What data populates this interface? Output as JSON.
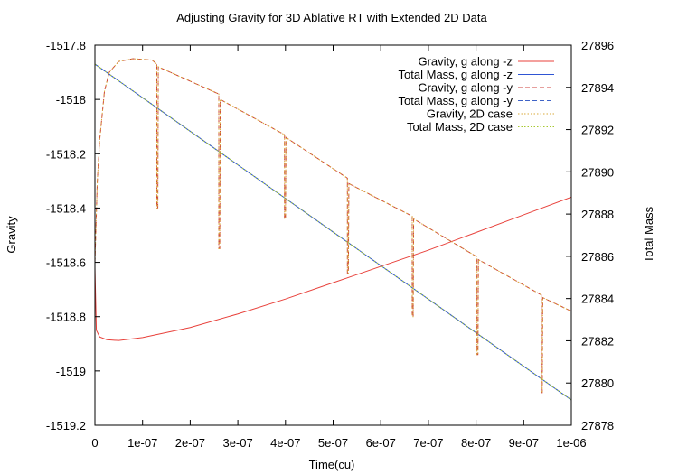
{
  "chart_data": {
    "type": "line",
    "title": "Adjusting Gravity for 3D Ablative RT with Extended 2D Data",
    "xlabel": "Time(cu)",
    "ylabel": "Gravity",
    "y2label": "Total Mass",
    "xlim": [
      0,
      1e-06
    ],
    "ylim": [
      -1519.2,
      -1517.8
    ],
    "y2lim": [
      27878,
      27896
    ],
    "x_ticks": [
      0,
      1e-07,
      2e-07,
      3e-07,
      4e-07,
      5e-07,
      6e-07,
      7e-07,
      8e-07,
      9e-07,
      1e-06
    ],
    "x_tick_labels": [
      "0",
      "1e-07",
      "2e-07",
      "3e-07",
      "4e-07",
      "5e-07",
      "6e-07",
      "7e-07",
      "8e-07",
      "9e-07",
      "1e-06"
    ],
    "y_ticks": [
      -1517.8,
      -1518,
      -1518.2,
      -1518.4,
      -1518.6,
      -1518.8,
      -1519,
      -1519.2
    ],
    "y_tick_labels": [
      "-1517.8",
      "-1518",
      "-1518.2",
      "-1518.4",
      "-1518.6",
      "-1518.8",
      "-1519",
      "-1519.2"
    ],
    "y2_ticks": [
      27896,
      27894,
      27892,
      27890,
      27888,
      27886,
      27884,
      27882,
      27880,
      27878
    ],
    "y2_tick_labels": [
      "27896",
      "27894",
      "27892",
      "27890",
      "27888",
      "27886",
      "27884",
      "27882",
      "27880",
      "27878"
    ],
    "legend_position": "top-right",
    "grid": false,
    "series": [
      {
        "name": "Gravity, g along -z",
        "axis": "left",
        "color": "#e8413b",
        "dash": "solid",
        "x": [
          0,
          3e-09,
          1e-08,
          2.5e-08,
          5e-08,
          1e-07,
          2e-07,
          3e-07,
          4e-07,
          5e-07,
          6e-07,
          7e-07,
          8e-07,
          9e-07,
          1e-06
        ],
        "y": [
          -1518.62,
          -1518.85,
          -1518.875,
          -1518.885,
          -1518.888,
          -1518.877,
          -1518.84,
          -1518.79,
          -1518.735,
          -1518.675,
          -1518.615,
          -1518.555,
          -1518.49,
          -1518.425,
          -1518.36
        ]
      },
      {
        "name": "Total Mass, g along -z",
        "axis": "right",
        "color": "#2f55d4",
        "dash": "solid",
        "x": [
          0,
          1e-06
        ],
        "y": [
          27895.1,
          27879.2
        ]
      },
      {
        "name": "Gravity, g along -y",
        "axis": "left",
        "color": "#cc3f3b",
        "dash": "dashed",
        "x": [
          0,
          5e-09,
          1e-08,
          2e-08,
          3e-08,
          5e-08,
          8e-08,
          1.2e-07,
          1.3e-07,
          1.3e-07,
          1.32e-07,
          1.33e-07,
          2.6e-07,
          2.6e-07,
          2.62e-07,
          2.63e-07,
          3.98e-07,
          3.98e-07,
          4e-07,
          4.01e-07,
          5.3e-07,
          5.3e-07,
          5.32e-07,
          5.33e-07,
          6.66e-07,
          6.66e-07,
          6.68e-07,
          6.69e-07,
          8.02e-07,
          8.02e-07,
          8.04e-07,
          8.05e-07,
          9.37e-07,
          9.37e-07,
          9.39e-07,
          9.4e-07,
          1e-06
        ],
        "y": [
          -1518.6,
          -1518.3,
          -1518.15,
          -1517.97,
          -1517.9,
          -1517.86,
          -1517.85,
          -1517.855,
          -1517.87,
          -1518.4,
          -1518.4,
          -1517.88,
          -1517.98,
          -1518.55,
          -1518.55,
          -1518.0,
          -1518.13,
          -1518.44,
          -1518.44,
          -1518.14,
          -1518.29,
          -1518.64,
          -1518.64,
          -1518.31,
          -1518.43,
          -1518.8,
          -1518.8,
          -1518.44,
          -1518.58,
          -1518.94,
          -1518.94,
          -1518.59,
          -1518.72,
          -1519.08,
          -1519.08,
          -1518.73,
          -1518.78
        ]
      },
      {
        "name": "Total Mass, g along -y",
        "axis": "right",
        "color": "#3f63c7",
        "dash": "dashed",
        "x": [
          0,
          1e-06
        ],
        "y": [
          27895.1,
          27879.2
        ]
      },
      {
        "name": "Gravity, 2D case",
        "axis": "left",
        "color": "#d9a93a",
        "dash": "dotted",
        "x": [
          0,
          5e-09,
          1e-08,
          2e-08,
          3e-08,
          5e-08,
          8e-08,
          1.2e-07,
          1.3e-07,
          1.3e-07,
          1.32e-07,
          1.33e-07,
          2.6e-07,
          2.6e-07,
          2.62e-07,
          2.63e-07,
          3.98e-07,
          3.98e-07,
          4e-07,
          4.01e-07,
          5.3e-07,
          5.3e-07,
          5.32e-07,
          5.33e-07,
          6.66e-07,
          6.66e-07,
          6.68e-07,
          6.69e-07,
          8.02e-07,
          8.02e-07,
          8.04e-07,
          8.05e-07,
          9.37e-07,
          9.37e-07,
          9.39e-07,
          9.4e-07,
          1e-06
        ],
        "y": [
          -1518.6,
          -1518.3,
          -1518.15,
          -1517.97,
          -1517.9,
          -1517.86,
          -1517.85,
          -1517.855,
          -1517.87,
          -1518.4,
          -1518.4,
          -1517.88,
          -1517.98,
          -1518.55,
          -1518.55,
          -1518.0,
          -1518.13,
          -1518.44,
          -1518.44,
          -1518.14,
          -1518.29,
          -1518.64,
          -1518.64,
          -1518.31,
          -1518.43,
          -1518.8,
          -1518.8,
          -1518.44,
          -1518.58,
          -1518.94,
          -1518.94,
          -1518.59,
          -1518.72,
          -1519.08,
          -1519.08,
          -1518.73,
          -1518.78
        ]
      },
      {
        "name": "Total Mass, 2D case",
        "axis": "right",
        "color": "#a8c832",
        "dash": "dotted",
        "x": [
          0,
          1e-06
        ],
        "y": [
          27895.1,
          27879.2
        ]
      }
    ]
  }
}
